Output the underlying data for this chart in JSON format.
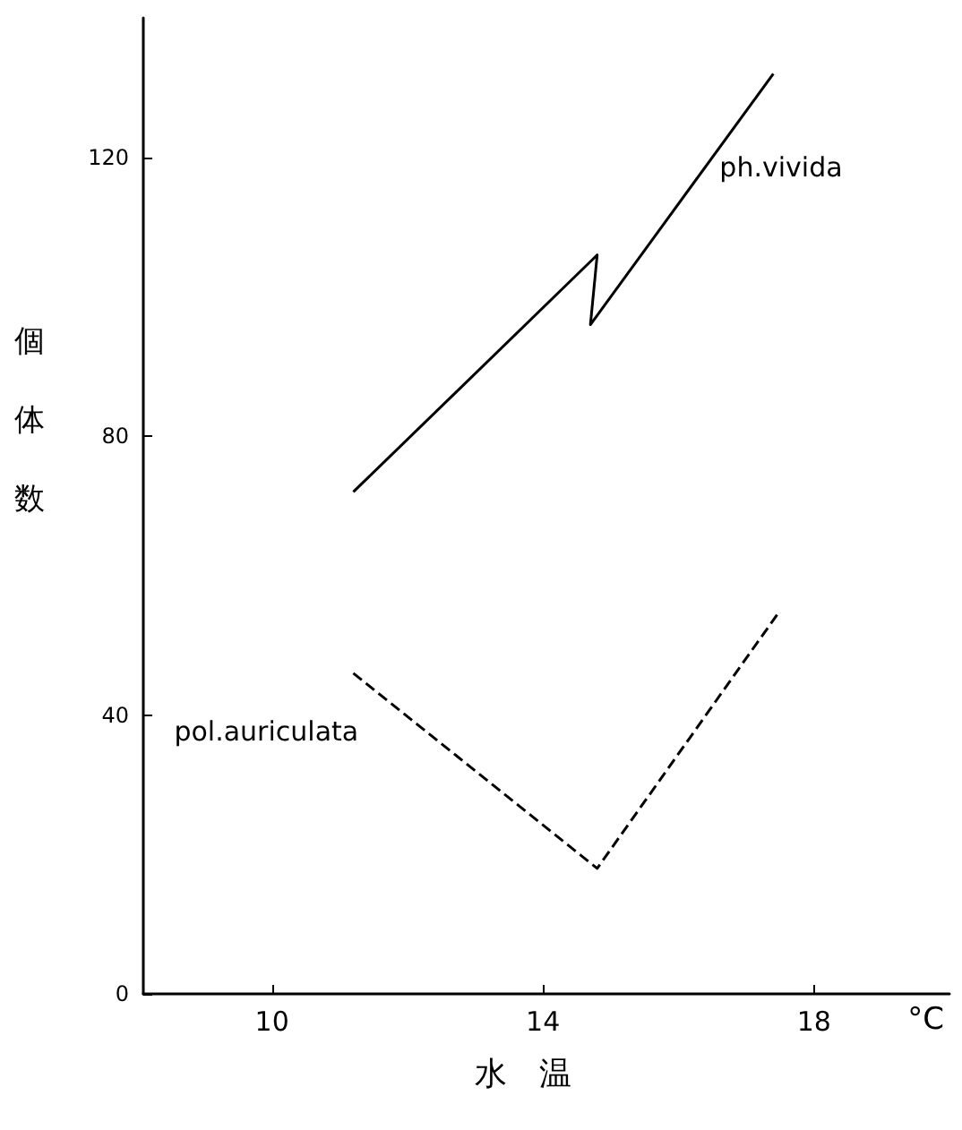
{
  "chart_data": {
    "type": "line",
    "xlabel": "水　温",
    "ylabel": "個体数",
    "annotations": [
      "°C"
    ],
    "xlim": [
      8.1,
      20
    ],
    "xticks": [
      10,
      14,
      18
    ],
    "ylim": [
      0,
      140
    ],
    "yticks": [
      0,
      40,
      80,
      120
    ],
    "marker": "none",
    "series": [
      {
        "name": "ph.vivida",
        "color": "#000000",
        "line_style": "solid",
        "x": [
          11.2,
          14.8,
          14.7,
          17.4
        ],
        "values": [
          72,
          106,
          96,
          132
        ]
      },
      {
        "name": "pol.auriculata",
        "color": "#000000",
        "line_style": "dashed",
        "x": [
          11.2,
          14.8,
          17.5
        ],
        "values": [
          46,
          18,
          55
        ]
      }
    ]
  }
}
